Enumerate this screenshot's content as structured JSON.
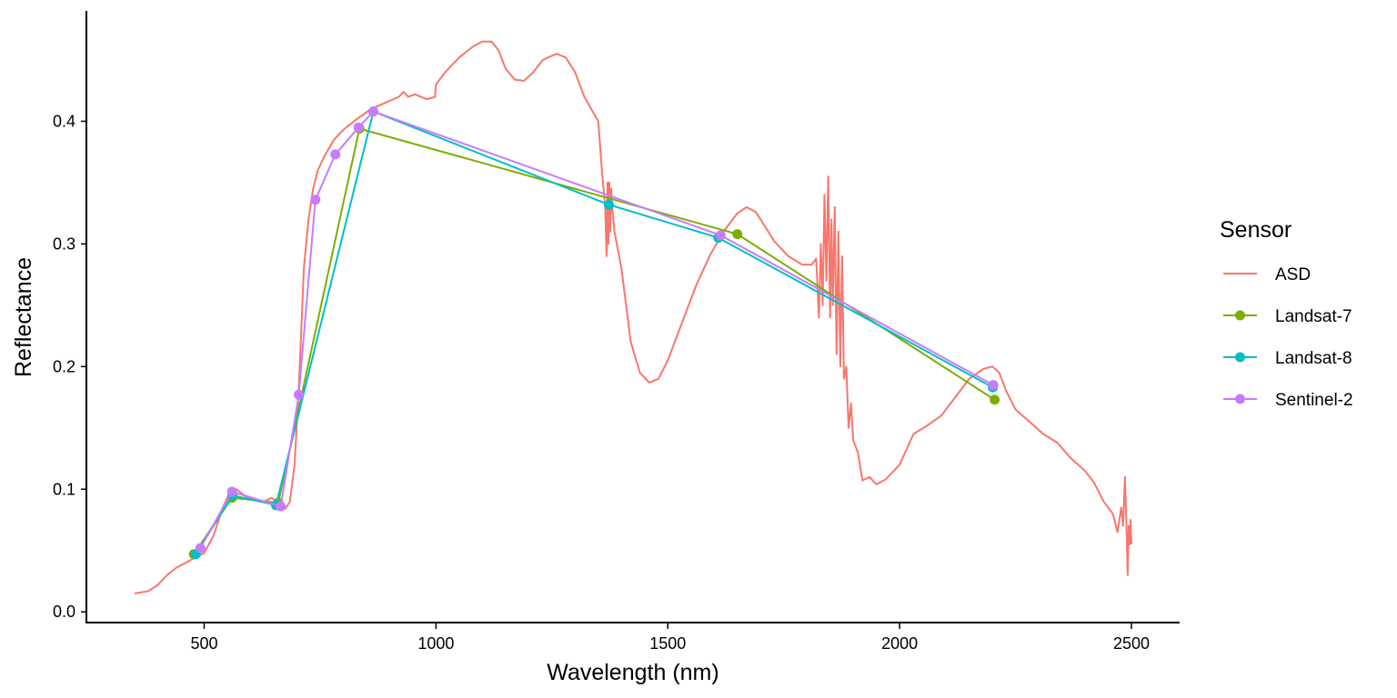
{
  "chart_data": {
    "type": "line",
    "title": "",
    "xlabel": "Wavelength (nm)",
    "ylabel": "Reflectance",
    "xlim": [
      248,
      2602
    ],
    "ylim": [
      -0.008,
      0.49
    ],
    "x_ticks": [
      500,
      1000,
      1500,
      2000,
      2500
    ],
    "x_tick_labels": [
      "500",
      "1000",
      "1500",
      "2000",
      "2500"
    ],
    "y_ticks": [
      0.0,
      0.1,
      0.2,
      0.3,
      0.4
    ],
    "y_tick_labels": [
      "0.0",
      "0.1",
      "0.2",
      "0.3",
      "0.4"
    ],
    "grid": false,
    "legend": {
      "title": "Sensor",
      "position": "right"
    },
    "series": [
      {
        "name": "ASD",
        "color": "#F8766D",
        "markers": false,
        "x": [
          350,
          380,
          400,
          420,
          440,
          460,
          480,
          500,
          520,
          540,
          555,
          570,
          590,
          610,
          630,
          645,
          660,
          675,
          685,
          695,
          705,
          715,
          725,
          735,
          745,
          760,
          780,
          800,
          830,
          860,
          890,
          920,
          930,
          940,
          955,
          980,
          998,
          1000,
          1020,
          1050,
          1080,
          1100,
          1120,
          1135,
          1150,
          1170,
          1190,
          1210,
          1230,
          1260,
          1280,
          1300,
          1320,
          1335,
          1350,
          1358,
          1365,
          1368,
          1370,
          1372,
          1374,
          1376,
          1378,
          1380,
          1385,
          1400,
          1410,
          1420,
          1440,
          1460,
          1480,
          1500,
          1530,
          1560,
          1590,
          1620,
          1650,
          1670,
          1690,
          1710,
          1730,
          1760,
          1790,
          1810,
          1820,
          1826,
          1830,
          1834,
          1838,
          1842,
          1846,
          1850,
          1853,
          1856,
          1860,
          1864,
          1868,
          1872,
          1876,
          1880,
          1885,
          1890,
          1895,
          1900,
          1910,
          1920,
          1935,
          1950,
          1970,
          2000,
          2030,
          2060,
          2090,
          2120,
          2150,
          2180,
          2200,
          2215,
          2230,
          2250,
          2280,
          2310,
          2340,
          2370,
          2400,
          2420,
          2440,
          2460,
          2470,
          2478,
          2482,
          2486,
          2490,
          2492,
          2494,
          2496,
          2498,
          2500
        ],
        "y": [
          0.015,
          0.017,
          0.022,
          0.03,
          0.036,
          0.04,
          0.044,
          0.048,
          0.062,
          0.085,
          0.097,
          0.1,
          0.094,
          0.091,
          0.09,
          0.093,
          0.089,
          0.084,
          0.09,
          0.12,
          0.19,
          0.28,
          0.32,
          0.345,
          0.36,
          0.372,
          0.385,
          0.393,
          0.402,
          0.41,
          0.415,
          0.42,
          0.424,
          0.42,
          0.422,
          0.418,
          0.42,
          0.43,
          0.44,
          0.452,
          0.461,
          0.465,
          0.465,
          0.458,
          0.443,
          0.434,
          0.433,
          0.44,
          0.45,
          0.455,
          0.452,
          0.44,
          0.42,
          0.41,
          0.4,
          0.36,
          0.33,
          0.29,
          0.35,
          0.3,
          0.35,
          0.31,
          0.345,
          0.33,
          0.31,
          0.28,
          0.25,
          0.22,
          0.195,
          0.187,
          0.19,
          0.205,
          0.235,
          0.265,
          0.29,
          0.31,
          0.325,
          0.33,
          0.326,
          0.314,
          0.302,
          0.29,
          0.283,
          0.283,
          0.288,
          0.24,
          0.3,
          0.25,
          0.34,
          0.27,
          0.355,
          0.24,
          0.32,
          0.25,
          0.33,
          0.21,
          0.31,
          0.2,
          0.29,
          0.19,
          0.2,
          0.15,
          0.17,
          0.14,
          0.13,
          0.107,
          0.11,
          0.104,
          0.108,
          0.12,
          0.145,
          0.152,
          0.16,
          0.175,
          0.19,
          0.198,
          0.2,
          0.195,
          0.18,
          0.165,
          0.155,
          0.145,
          0.138,
          0.125,
          0.115,
          0.105,
          0.09,
          0.08,
          0.065,
          0.085,
          0.07,
          0.11,
          0.06,
          0.03,
          0.07,
          0.055,
          0.075,
          0.055
        ]
      },
      {
        "name": "Landsat-7",
        "color": "#7CAE00",
        "markers": true,
        "x": [
          478,
          560,
          660,
          835,
          1650,
          2205
        ],
        "y": [
          0.047,
          0.093,
          0.089,
          0.394,
          0.308,
          0.173
        ]
      },
      {
        "name": "Landsat-8",
        "color": "#00BFC4",
        "markers": true,
        "x": [
          482,
          561,
          655,
          865,
          1373,
          1609,
          2201
        ],
        "y": [
          0.047,
          0.095,
          0.087,
          0.408,
          0.332,
          0.305,
          0.183
        ]
      },
      {
        "name": "Sentinel-2",
        "color": "#C77CFF",
        "markers": true,
        "x": [
          492,
          560,
          665,
          704,
          740,
          783,
          833,
          865,
          1614,
          2202
        ],
        "y": [
          0.052,
          0.098,
          0.086,
          0.177,
          0.336,
          0.373,
          0.395,
          0.408,
          0.307,
          0.185
        ]
      }
    ]
  }
}
